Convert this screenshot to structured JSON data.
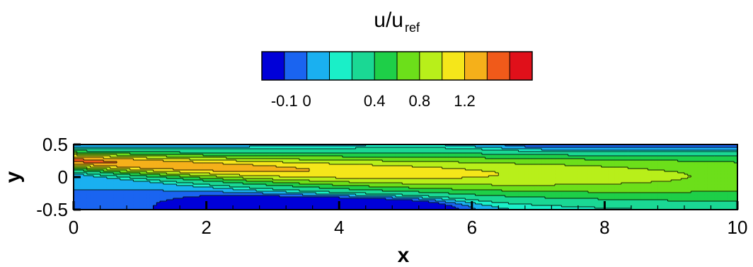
{
  "chart_data": {
    "type": "heatmap",
    "title": "",
    "colorbar": {
      "label_base": "u/u",
      "label_sub": "ref",
      "levels": [
        -0.2,
        -0.1,
        0.0,
        0.1,
        0.2,
        0.4,
        0.6,
        0.8,
        1.0,
        1.2,
        1.4,
        1.5
      ],
      "colors": [
        "#0000d8",
        "#1a64f0",
        "#1ab0f0",
        "#1aefc8",
        "#1ad894",
        "#1ecf48",
        "#6cdf1a",
        "#b8ef1a",
        "#f5e61a",
        "#f5b01a",
        "#f05a1a",
        "#e0101a"
      ],
      "tick_values": [
        -0.1,
        0.0,
        0.4,
        0.8,
        1.2
      ],
      "tick_labels": [
        "-0.1",
        "0",
        "0.4",
        "0.8",
        "1.2"
      ]
    },
    "xlabel": "x",
    "ylabel": "y",
    "xlim": [
      0,
      10
    ],
    "ylim": [
      -0.5,
      0.5
    ],
    "x_ticks": [
      0,
      2,
      4,
      6,
      8,
      10
    ],
    "x_tick_labels": [
      "0",
      "2",
      "4",
      "6",
      "8",
      "10"
    ],
    "y_ticks": [
      -0.5,
      0,
      0.5
    ],
    "y_tick_labels": [
      "-0.5",
      "0",
      "0.5"
    ],
    "grid": false,
    "field_description": "wall jet u/u_ref: jet core (~1.4) near y~0.25 from x=0, spreading and decaying downstream to ~1.0; recirculation (~-0.2) along lower wall for x~1-6; weak reverse flow near upper wall for x>6",
    "min_value": -0.2,
    "max_value": 1.5
  },
  "ui": {
    "colorscale_hint": "u/uref"
  }
}
